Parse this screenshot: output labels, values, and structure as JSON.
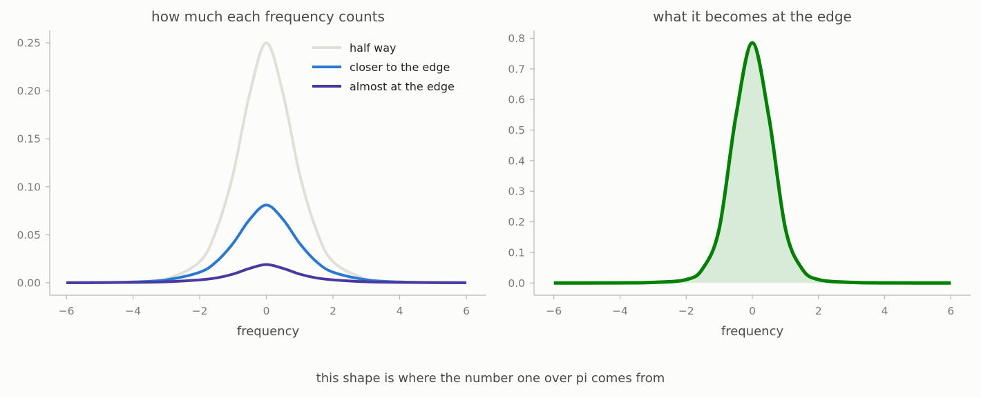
{
  "figure": {
    "caption": "this shape is where the number one over pi comes from"
  },
  "chart_data": [
    {
      "type": "line",
      "title": "how much each frequency counts",
      "xlabel": "frequency",
      "ylabel": "",
      "xlim": [
        -6.5,
        6.6
      ],
      "ylim": [
        -0.013,
        0.263
      ],
      "xticks": [
        -6,
        -4,
        -2,
        0,
        2,
        4,
        6
      ],
      "xtick_labels": [
        "−6",
        "−4",
        "−2",
        "0",
        "2",
        "4",
        "6"
      ],
      "yticks": [
        0.0,
        0.05,
        0.1,
        0.15,
        0.2,
        0.25
      ],
      "ytick_labels": [
        "0.00",
        "0.05",
        "0.10",
        "0.15",
        "0.20",
        "0.25"
      ],
      "grid": false,
      "legend": "top-right",
      "x": [
        -6,
        -5,
        -4,
        -3,
        -2,
        -1.5,
        -1,
        -0.5,
        0,
        0.5,
        1,
        1.5,
        2,
        3,
        4,
        5,
        6
      ],
      "series": [
        {
          "name": "half way",
          "color": "#e0e0d8",
          "values": [
            0.0,
            0.0001,
            0.0007,
            0.004,
            0.022,
            0.055,
            0.113,
            0.197,
            0.25,
            0.197,
            0.113,
            0.055,
            0.022,
            0.004,
            0.0007,
            0.0001,
            0.0
          ]
        },
        {
          "name": "closer to the edge",
          "color": "#2b78d0",
          "values": [
            0.0,
            0.0002,
            0.0008,
            0.003,
            0.011,
            0.022,
            0.041,
            0.066,
            0.081,
            0.066,
            0.041,
            0.022,
            0.011,
            0.003,
            0.0008,
            0.0002,
            0.0
          ]
        },
        {
          "name": "almost at the edge",
          "color": "#4a3aa0",
          "values": [
            0.0,
            0.0001,
            0.0004,
            0.001,
            0.003,
            0.005,
            0.009,
            0.015,
            0.019,
            0.015,
            0.009,
            0.005,
            0.003,
            0.001,
            0.0004,
            0.0001,
            0.0
          ]
        }
      ]
    },
    {
      "type": "area",
      "title": "what it becomes at the edge",
      "xlabel": "frequency",
      "ylabel": "",
      "xlim": [
        -6.6,
        6.6
      ],
      "ylim": [
        -0.04,
        0.826
      ],
      "xticks": [
        -6,
        -4,
        -2,
        0,
        2,
        4,
        6
      ],
      "xtick_labels": [
        "−6",
        "−4",
        "−2",
        "0",
        "2",
        "4",
        "6"
      ],
      "yticks": [
        0.0,
        0.1,
        0.2,
        0.3,
        0.4,
        0.5,
        0.6,
        0.7,
        0.8
      ],
      "ytick_labels": [
        "0.0",
        "0.1",
        "0.2",
        "0.3",
        "0.4",
        "0.5",
        "0.6",
        "0.7",
        "0.8"
      ],
      "grid": false,
      "x": [
        -6,
        -5,
        -4,
        -3,
        -2,
        -1.5,
        -1,
        -0.5,
        0,
        0.5,
        1,
        1.5,
        2,
        3,
        4,
        5,
        6
      ],
      "series": [
        {
          "name": "",
          "color": "#008000",
          "fill": "#d8ead8",
          "values": [
            0.0,
            0.0,
            0.0003,
            0.002,
            0.011,
            0.047,
            0.178,
            0.543,
            0.785,
            0.543,
            0.178,
            0.047,
            0.011,
            0.002,
            0.0003,
            0.0,
            0.0
          ]
        }
      ]
    }
  ]
}
